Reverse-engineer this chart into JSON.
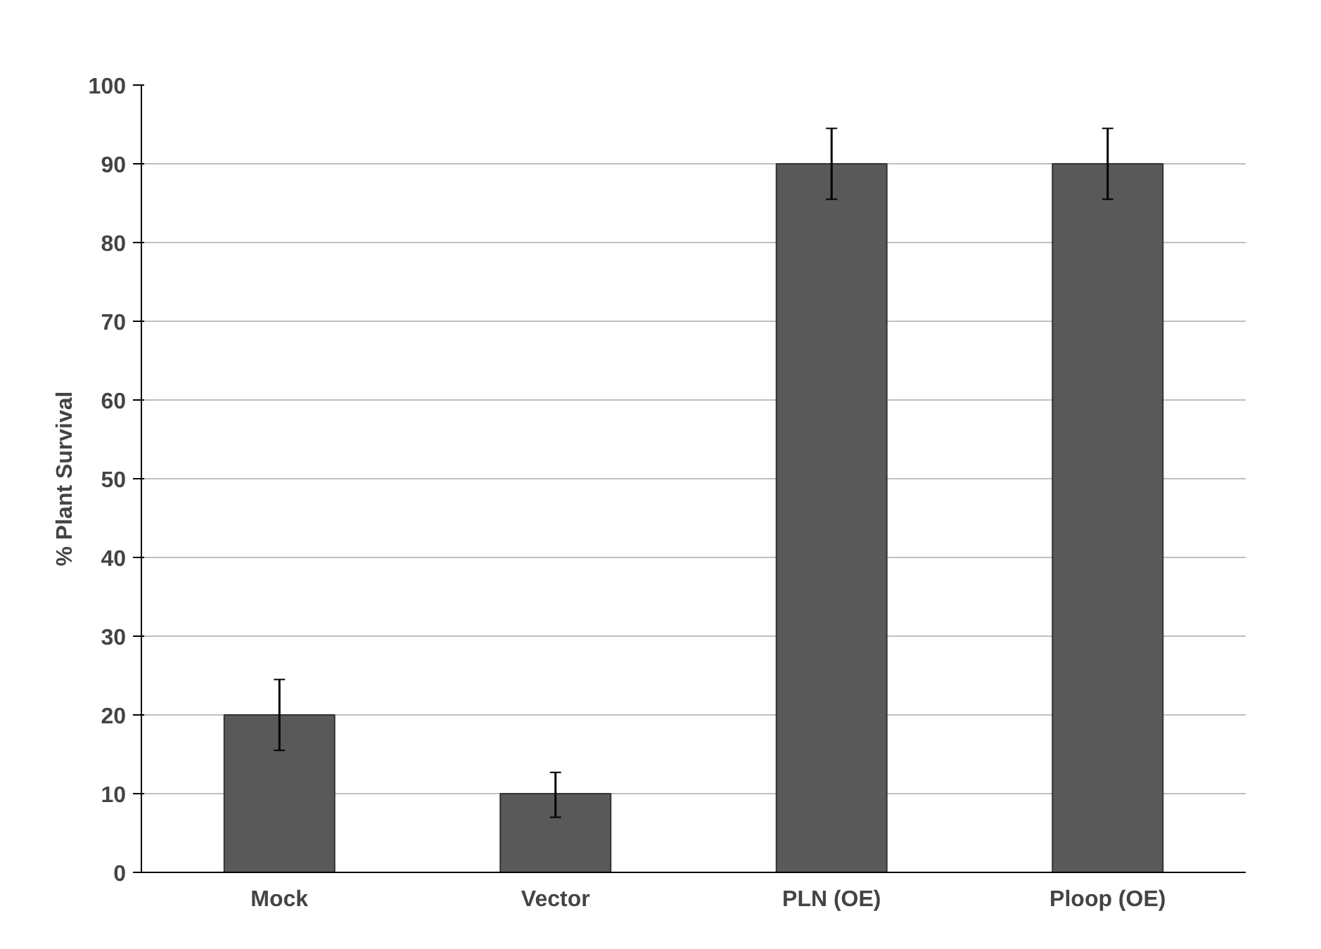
{
  "chart_data": {
    "type": "bar",
    "ylabel": "% Plant Survival",
    "categories": [
      "Mock",
      "Vector",
      "PLN (OE)",
      "Ploop (OE)"
    ],
    "values": [
      20,
      10,
      90,
      90
    ],
    "errors": [
      [
        15.5,
        24.5
      ],
      [
        7,
        12.7
      ],
      [
        85.5,
        94.5
      ],
      [
        85.5,
        94.5
      ]
    ],
    "color": "#595959",
    "ylim": [
      0,
      100
    ],
    "yticks": [
      0,
      10,
      20,
      30,
      40,
      50,
      60,
      70,
      80,
      90,
      100
    ],
    "grid": "y"
  }
}
